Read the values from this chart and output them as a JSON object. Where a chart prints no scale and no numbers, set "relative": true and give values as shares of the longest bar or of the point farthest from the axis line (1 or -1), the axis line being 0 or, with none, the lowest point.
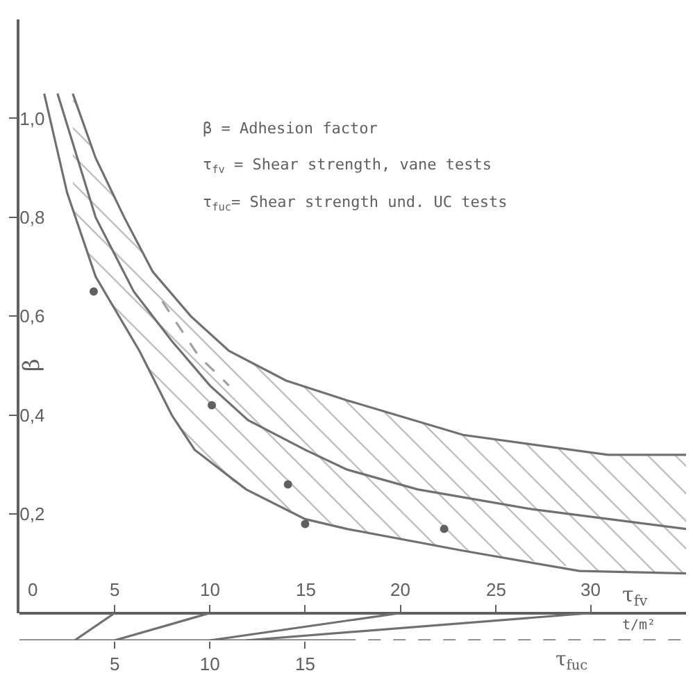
{
  "chart_data": [
    {
      "type": "line",
      "xlabel": "τ$_{fv}$",
      "ylabel": "β",
      "xlim": [
        0,
        35
      ],
      "ylim": [
        0,
        1.2
      ],
      "xticks": [
        0,
        5,
        10,
        15,
        20,
        25,
        30
      ],
      "yticks": [
        {
          "value": 0.2,
          "label": "0,2"
        },
        {
          "value": 0.4,
          "label": "0,4"
        },
        {
          "value": 0.6,
          "label": "0,6"
        },
        {
          "value": 0.8,
          "label": "0,8"
        },
        {
          "value": 1.0,
          "label": "1,0"
        }
      ],
      "annotations": [
        "β = Adhesion factor",
        "τ$_{fv}$ = Shear strength, vane tests",
        "τ$_{fuc}$= Shear strength und. UC tests",
        "t/m²"
      ],
      "series": [
        {
          "type": "line",
          "color": "#707070",
          "x": [
            1.3,
            2.5,
            4,
            6.3,
            8,
            9.2,
            11.9,
            15,
            17.2,
            23.3,
            29.4,
            35
          ],
          "values": [
            1.05,
            0.85,
            0.68,
            0.53,
            0.4,
            0.33,
            0.25,
            0.19,
            0.17,
            0.126,
            0.085,
            0.08
          ]
        },
        {
          "type": "line",
          "color": "#707070",
          "x": [
            2.8,
            4,
            5.5,
            7,
            9,
            11,
            14,
            17.2,
            23.3,
            30.9,
            35
          ],
          "values": [
            1.05,
            0.92,
            0.8,
            0.69,
            0.6,
            0.53,
            0.47,
            0.43,
            0.36,
            0.32,
            0.32
          ],
          "lower": [
            0.81,
            0.68,
            0.58,
            0.48,
            0.34,
            0.27,
            0.21,
            0.17,
            0.126,
            0.083,
            0.08
          ],
          "upper": [
            1.05,
            0.92,
            0.8,
            0.69,
            0.6,
            0.53,
            0.47,
            0.43,
            0.36,
            0.32,
            0.32
          ]
        },
        {
          "type": "line",
          "color": "#707070",
          "x": [
            2.0,
            4,
            6,
            8,
            10,
            12,
            15,
            17.2,
            20.9,
            26.9,
            35
          ],
          "values": [
            1.05,
            0.8,
            0.65,
            0.55,
            0.46,
            0.39,
            0.33,
            0.29,
            0.25,
            0.21,
            0.17
          ]
        },
        {
          "type": "line",
          "color": "#a0a0a0",
          "line_style": "dashed",
          "x": [
            7.5,
            9.4,
            11
          ],
          "values": [
            0.63,
            0.52,
            0.46
          ]
        },
        {
          "type": "scatter",
          "color": "#606060",
          "marker": "circle",
          "x": [
            3.9,
            10.1,
            14.1,
            15.0,
            22.3
          ],
          "values": [
            0.65,
            0.42,
            0.26,
            0.18,
            0.17
          ]
        }
      ]
    },
    {
      "type": "line",
      "relative": true,
      "xlabel": "τ$_{fuc}$",
      "xlim": [
        0,
        35
      ],
      "xticks": [
        5,
        10,
        15
      ],
      "tick_labels": "x",
      "series": [
        {
          "color": "#707070",
          "x": [
            2.9,
            5
          ],
          "values": [
            0,
            1
          ]
        },
        {
          "color": "#707070",
          "x": [
            5,
            10
          ],
          "values": [
            0,
            1
          ]
        },
        {
          "color": "#707070",
          "x": [
            10,
            20
          ],
          "values": [
            0,
            1
          ]
        },
        {
          "color": "#707070",
          "x": [
            11.9,
            30
          ],
          "values": [
            0,
            1
          ]
        },
        {
          "color": "#707070",
          "x": [
            0,
            17
          ],
          "values": [
            0,
            0
          ]
        },
        {
          "color": "#707070",
          "line_style": "dashed",
          "x": [
            17,
            35
          ],
          "values": [
            0,
            0
          ]
        }
      ]
    }
  ]
}
